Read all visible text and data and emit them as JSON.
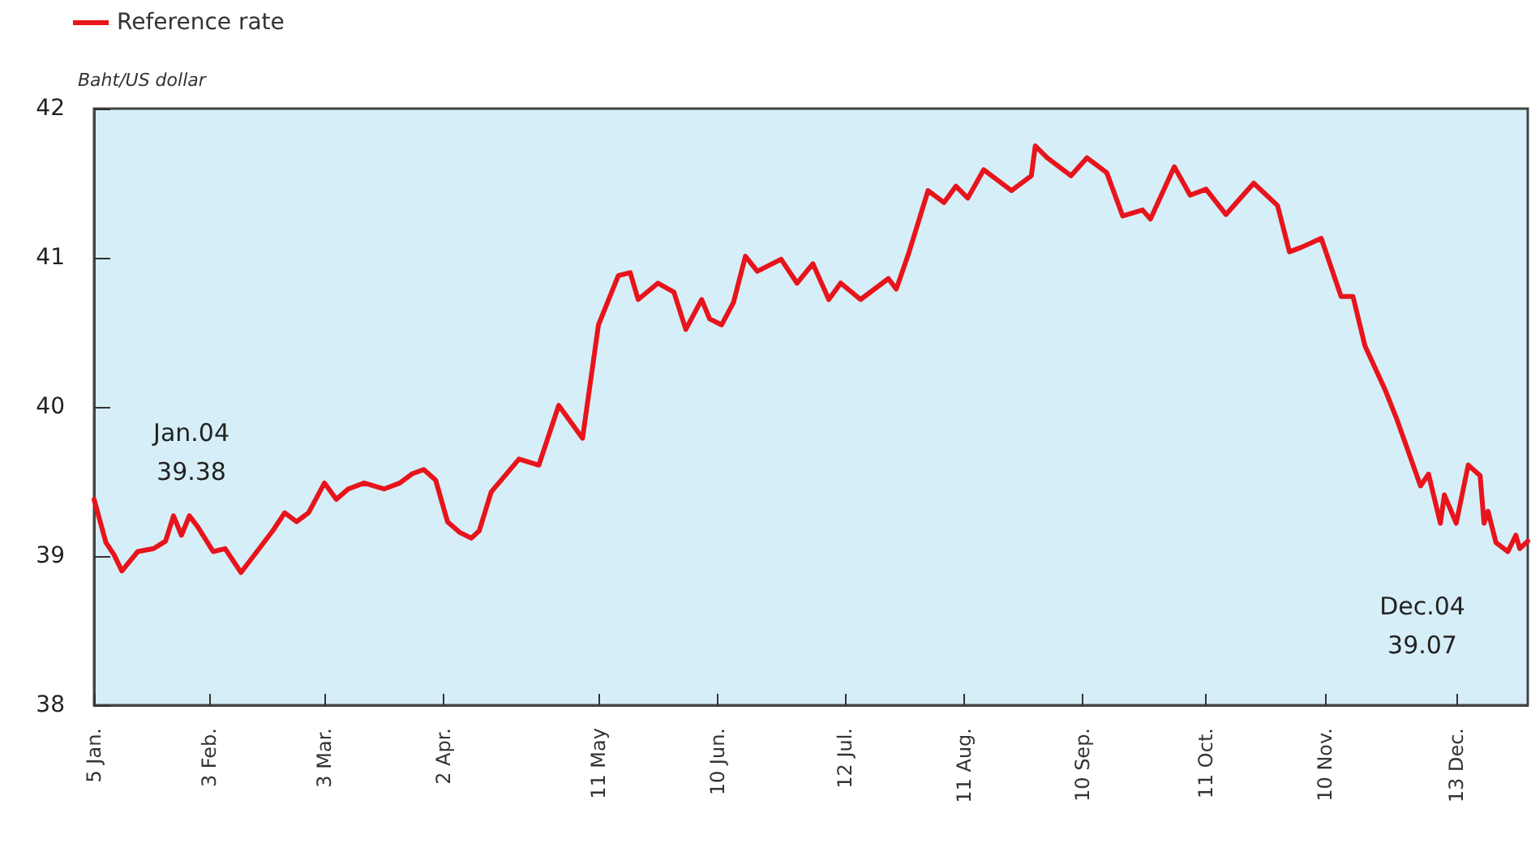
{
  "chart_data": {
    "type": "line",
    "ylabel": "Baht/US dollar",
    "legend": "top left",
    "grid": false,
    "marker": "none",
    "line_style": "solid",
    "xlim": [
      "--01-05",
      "--12-31"
    ],
    "xticks": [
      {
        "value": "--01-05",
        "label": "5 Jan."
      },
      {
        "value": "--02-03",
        "label": "3 Feb."
      },
      {
        "value": "--03-03",
        "label": "3 Mar."
      },
      {
        "value": "--04-02",
        "label": "2 Apr."
      },
      {
        "value": "--05-11",
        "label": "11 May"
      },
      {
        "value": "--06-10",
        "label": "10 Jun."
      },
      {
        "value": "--07-12",
        "label": "12 Jul."
      },
      {
        "value": "--08-11",
        "label": "11 Aug."
      },
      {
        "value": "--09-10",
        "label": "10 Sep."
      },
      {
        "value": "--10-11",
        "label": "11 Oct."
      },
      {
        "value": "--11-10",
        "label": "10 Nov."
      },
      {
        "value": "--12-13",
        "label": "13 Dec."
      }
    ],
    "ylim": [
      38,
      42
    ],
    "yticks": [
      38,
      39,
      40,
      41,
      42
    ],
    "annotations": [
      "Jan.04\n39.38",
      "Dec.04\n39.07"
    ],
    "x": [
      "--01-05",
      "--01-08",
      "--01-10",
      "--01-12",
      "--01-16",
      "--01-20",
      "--01-23",
      "--01-25",
      "--01-27",
      "--01-29",
      "--01-31",
      "--02-04",
      "--02-07",
      "--02-11",
      "--02-15",
      "--02-19",
      "--02-22",
      "--02-25",
      "--02-28",
      "--03-03",
      "--03-06",
      "--03-09",
      "--03-13",
      "--03-18",
      "--03-22",
      "--03-25",
      "--03-28",
      "--03-31",
      "--04-03",
      "--04-06",
      "--04-09",
      "--04-11",
      "--04-14",
      "--04-21",
      "--04-26",
      "--05-01",
      "--05-07",
      "--05-11",
      "--05-16",
      "--05-19",
      "--05-21",
      "--05-26",
      "--05-30",
      "--06-02",
      "--06-06",
      "--06-08",
      "--06-11",
      "--06-14",
      "--06-17",
      "--06-20",
      "--06-26",
      "--06-30",
      "--07-04",
      "--07-08",
      "--07-11",
      "--07-16",
      "--07-23",
      "--07-25",
      "--07-28",
      "--08-02",
      "--08-06",
      "--08-09",
      "--08-12",
      "--08-16",
      "--08-23",
      "--08-28",
      "--08-29",
      "--09-01",
      "--09-07",
      "--09-11",
      "--09-16",
      "--09-20",
      "--09-25",
      "--09-27",
      "--10-03",
      "--10-07",
      "--10-11",
      "--10-16",
      "--10-23",
      "--10-29",
      "--11-01",
      "--11-04",
      "--11-09",
      "--11-14",
      "--11-17",
      "--11-20",
      "--11-25",
      "--11-28",
      "--12-04",
      "--12-06",
      "--12-09",
      "--12-10",
      "--12-13",
      "--12-16",
      "--12-19",
      "--12-20",
      "--12-21",
      "--12-23",
      "--12-26",
      "--12-28",
      "--12-29",
      "--12-31"
    ],
    "series": [
      {
        "name": "Reference rate",
        "color": "#e8141c",
        "values": [
          39.38,
          39.09,
          39.01,
          38.9,
          39.03,
          39.05,
          39.1,
          39.27,
          39.14,
          39.27,
          39.2,
          39.03,
          39.05,
          38.89,
          39.03,
          39.17,
          39.29,
          39.23,
          39.29,
          39.49,
          39.38,
          39.45,
          39.49,
          39.45,
          39.49,
          39.55,
          39.58,
          39.51,
          39.23,
          39.16,
          39.12,
          39.17,
          39.43,
          39.65,
          39.61,
          40.01,
          39.79,
          40.55,
          40.88,
          40.9,
          40.72,
          40.83,
          40.77,
          40.52,
          40.72,
          40.59,
          40.55,
          40.7,
          41.01,
          40.91,
          40.99,
          40.83,
          40.96,
          40.72,
          40.83,
          40.72,
          40.86,
          40.79,
          41.02,
          41.45,
          41.37,
          41.48,
          41.4,
          41.59,
          41.45,
          41.55,
          41.75,
          41.67,
          41.55,
          41.67,
          41.57,
          41.28,
          41.32,
          41.26,
          41.61,
          41.42,
          41.46,
          41.29,
          41.5,
          41.35,
          41.04,
          41.07,
          41.13,
          40.74,
          40.74,
          40.41,
          40.12,
          39.92,
          39.47,
          39.55,
          39.22,
          39.41,
          39.22,
          39.61,
          39.54,
          39.22,
          39.3,
          39.09,
          39.03,
          39.14,
          39.05,
          39.1
        ]
      }
    ]
  }
}
